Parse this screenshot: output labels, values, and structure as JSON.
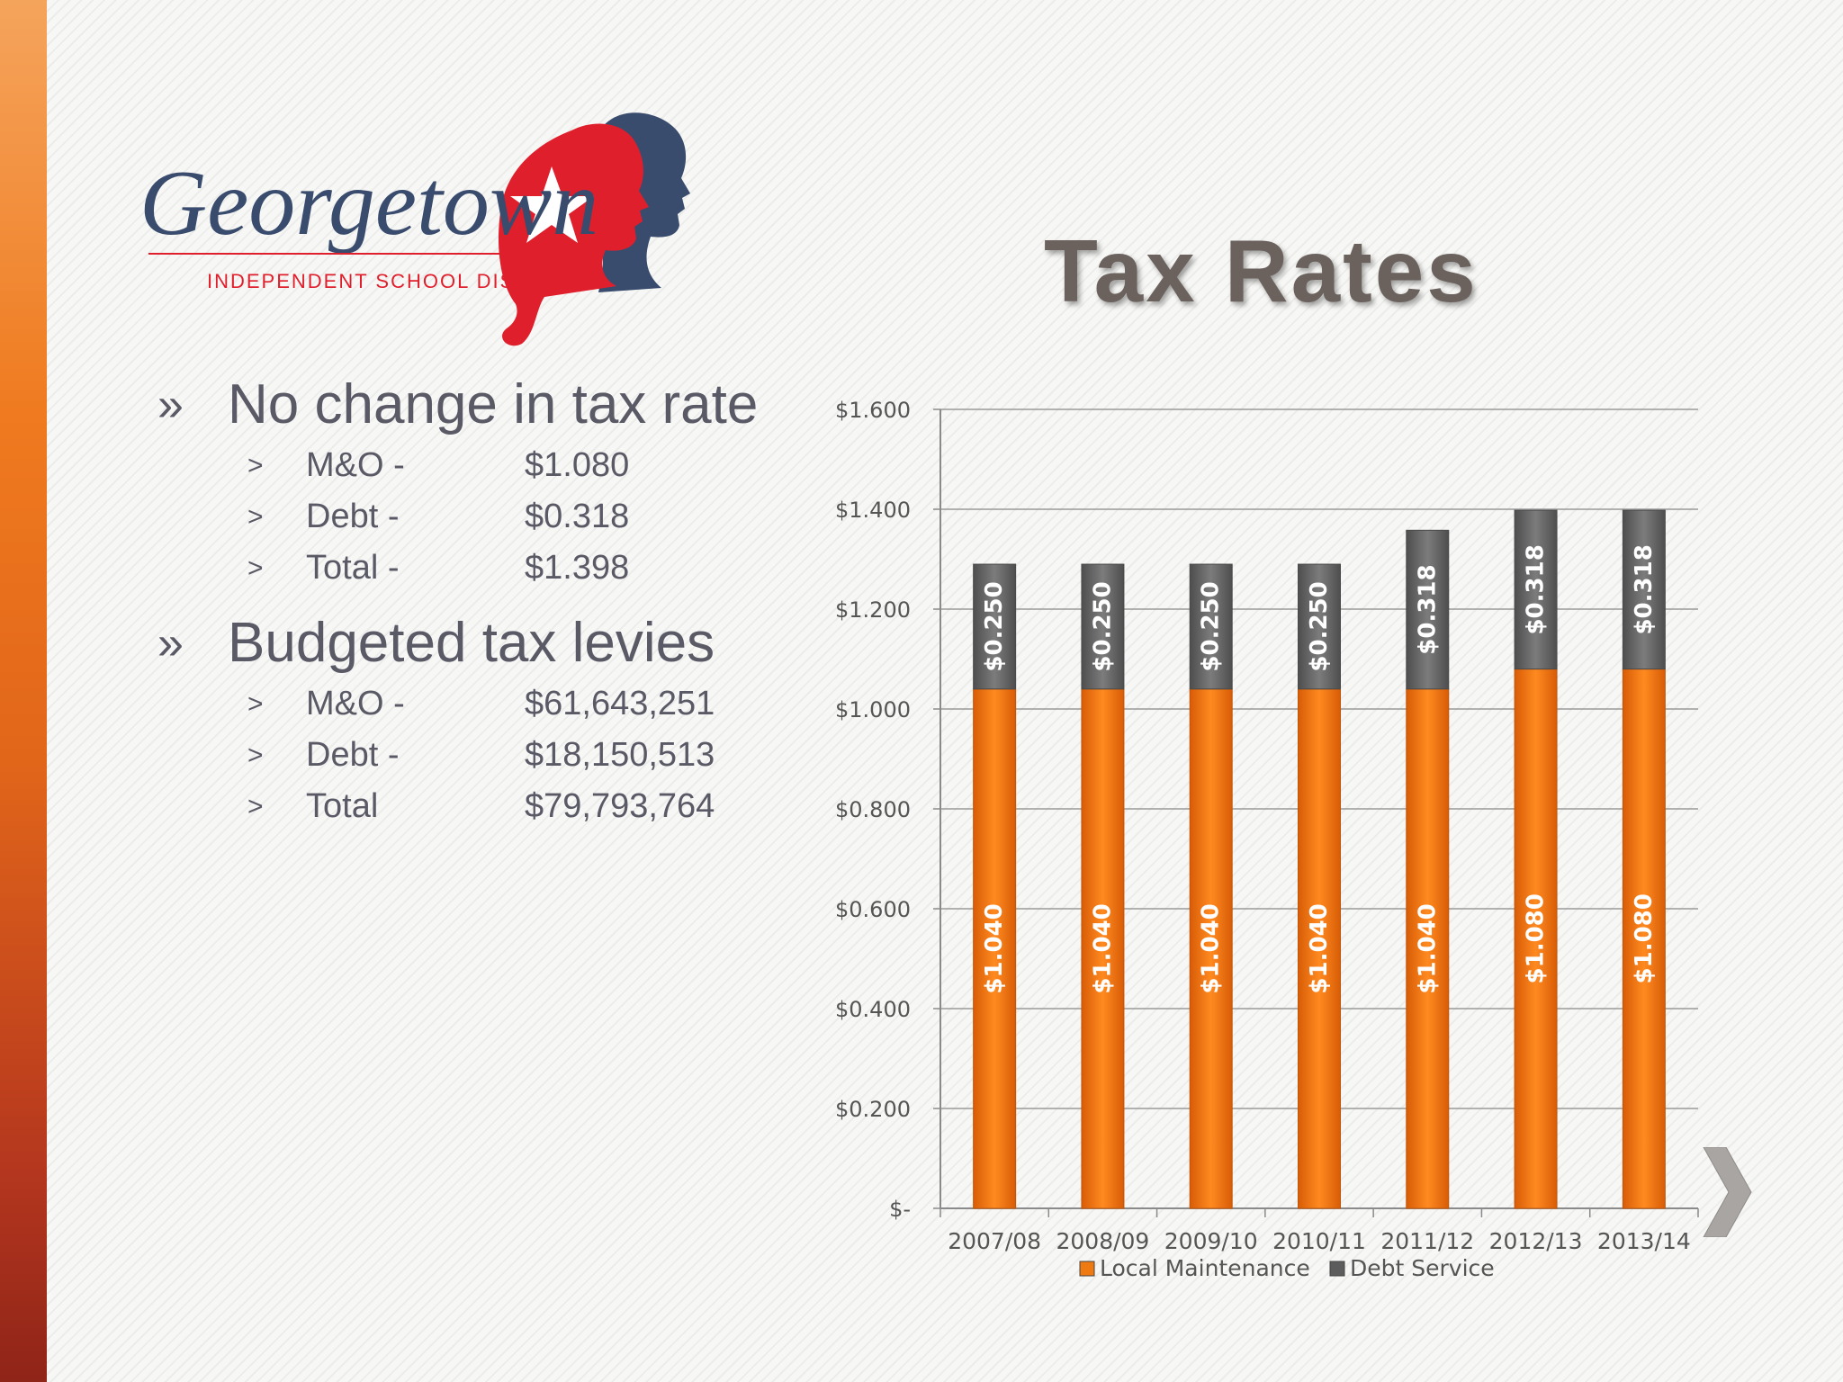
{
  "slide": {
    "title": "Tax Rates",
    "logo": {
      "wordmark": "Georgetown",
      "subtitle": "INDEPENDENT SCHOOL DISTRICT",
      "colors": {
        "red": "#e01f2d",
        "navy": "#3a4c6e"
      }
    },
    "bullets": [
      {
        "text": "No change in tax rate",
        "items": [
          {
            "label": "M&O -",
            "value": "$1.080"
          },
          {
            "label": "Debt -",
            "value": "$0.318"
          },
          {
            "label": "Total -",
            "value": "$1.398"
          }
        ]
      },
      {
        "text": "Budgeted tax levies",
        "items": [
          {
            "label": "M&O -",
            "value": "$61,643,251"
          },
          {
            "label": "Debt -",
            "value": "$18,150,513"
          },
          {
            "label": "Total",
            "value": "$79,793,764"
          }
        ]
      }
    ],
    "bullet_marks": {
      "level1": "»",
      "level2": ">"
    },
    "next_icon": "chevron-right-icon"
  },
  "chart_data": {
    "type": "bar",
    "stacked": true,
    "categories": [
      "2007/08",
      "2008/09",
      "2009/10",
      "2010/11",
      "2011/12",
      "2012/13",
      "2013/14"
    ],
    "series": [
      {
        "name": "Local Maintenance",
        "values": [
          1.04,
          1.04,
          1.04,
          1.04,
          1.04,
          1.08,
          1.08
        ],
        "labels": [
          "$1.040",
          "$1.040",
          "$1.040",
          "$1.040",
          "$1.040",
          "$1.080",
          "$1.080"
        ],
        "color": "#f07a12"
      },
      {
        "name": "Debt Service",
        "values": [
          0.25,
          0.25,
          0.25,
          0.25,
          0.318,
          0.318,
          0.318
        ],
        "labels": [
          "$0.250",
          "$0.250",
          "$0.250",
          "$0.250",
          "$0.318",
          "$0.318",
          "$0.318"
        ],
        "color": "#6b6b6b"
      }
    ],
    "ylim": [
      0,
      1.6
    ],
    "yticks": [
      0,
      0.2,
      0.4,
      0.6,
      0.8,
      1.0,
      1.2,
      1.4,
      1.6
    ],
    "ytick_labels": [
      "$-",
      "$0.200",
      "$0.400",
      "$0.600",
      "$0.800",
      "$1.000",
      "$1.200",
      "$1.400",
      "$1.600"
    ],
    "grid": true,
    "legend": "bottom"
  }
}
